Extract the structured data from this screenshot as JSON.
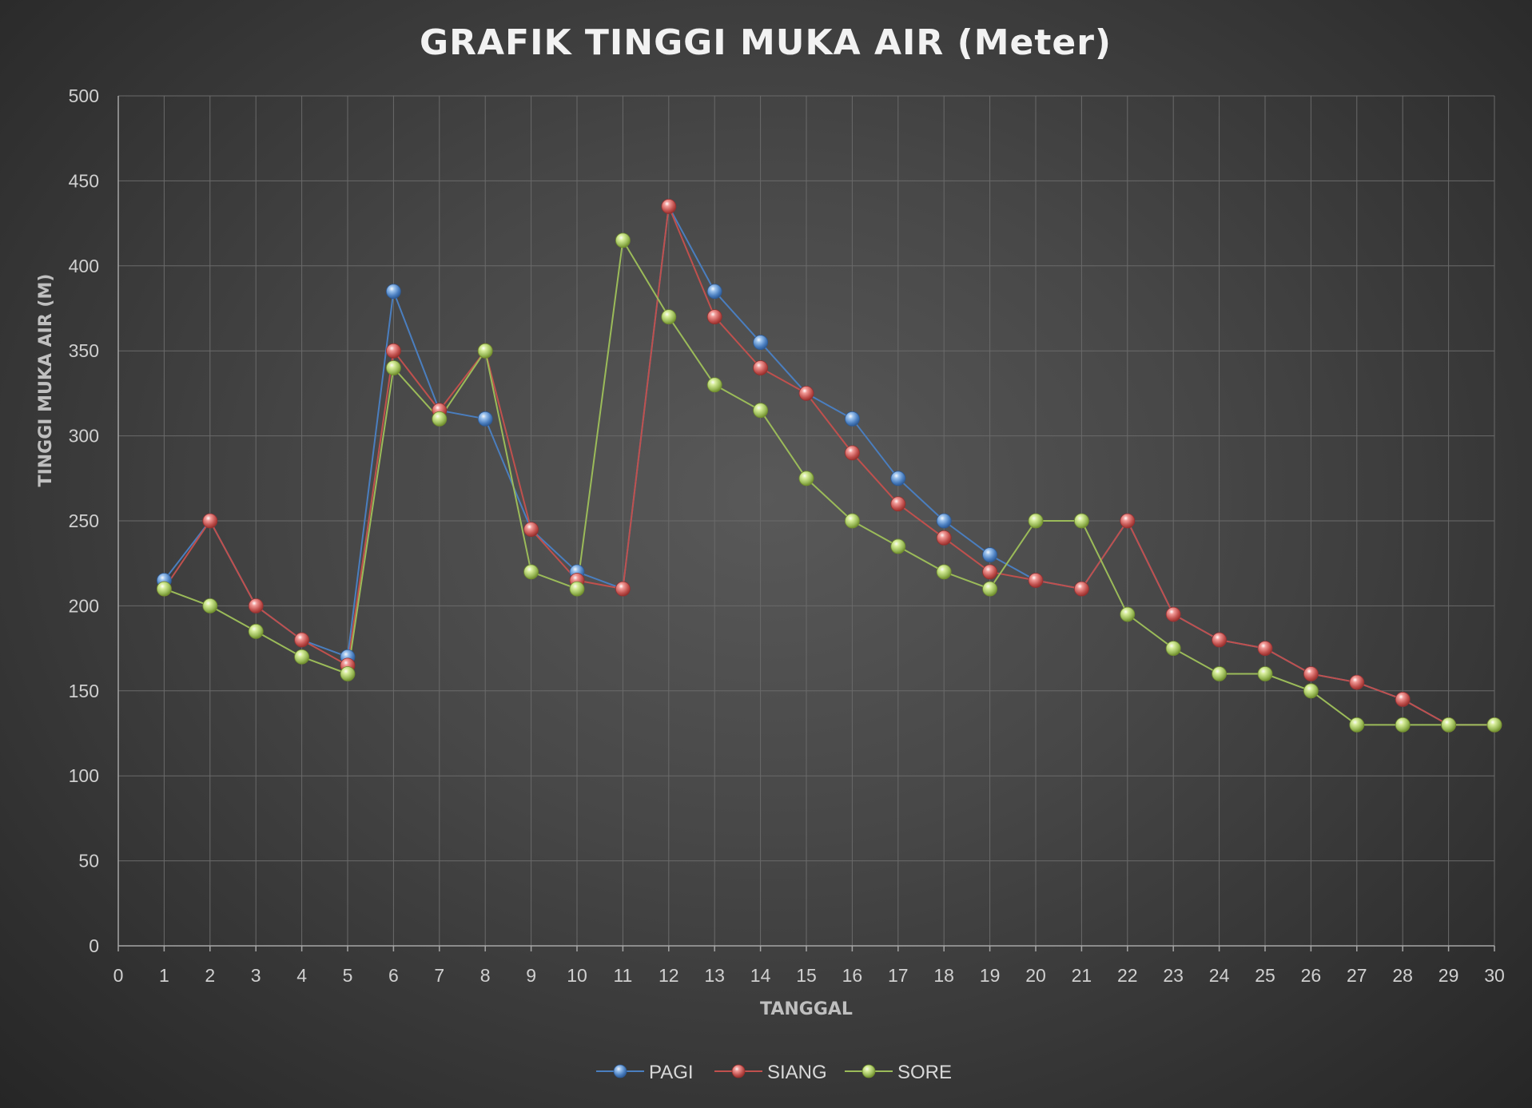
{
  "chart_data": {
    "type": "line",
    "title": "GRAFIK TINGGI MUKA AIR (Meter)",
    "xlabel": "TANGGAL",
    "ylabel": "TINGGI MUKA AIR (M)",
    "xlim": [
      0,
      30
    ],
    "ylim": [
      0,
      500
    ],
    "x_ticks": [
      0,
      1,
      2,
      3,
      4,
      5,
      6,
      7,
      8,
      9,
      10,
      11,
      12,
      13,
      14,
      15,
      16,
      17,
      18,
      19,
      20,
      21,
      22,
      23,
      24,
      25,
      26,
      27,
      28,
      29,
      30
    ],
    "y_ticks": [
      0,
      50,
      100,
      150,
      200,
      250,
      300,
      350,
      400,
      450,
      500
    ],
    "grid": true,
    "legend_position": "bottom",
    "x": [
      1,
      2,
      3,
      4,
      5,
      6,
      7,
      8,
      9,
      10,
      11,
      12,
      13,
      14,
      15,
      16,
      17,
      18,
      19,
      20,
      21,
      22,
      23,
      24,
      25,
      26,
      27,
      28,
      29,
      30
    ],
    "series": [
      {
        "name": "PAGI",
        "color": "#4a7ebf",
        "marker_light": "#9cc3ee",
        "marker_dark": "#2d5a95",
        "values": [
          215,
          250,
          200,
          180,
          170,
          385,
          315,
          310,
          245,
          220,
          210,
          435,
          385,
          355,
          325,
          310,
          275,
          250,
          230,
          215,
          210,
          250,
          195,
          180,
          175,
          160,
          155,
          145,
          130,
          130
        ]
      },
      {
        "name": "SIANG",
        "color": "#c0504d",
        "marker_light": "#f29a97",
        "marker_dark": "#962f2c",
        "values": [
          210,
          250,
          200,
          180,
          165,
          350,
          315,
          350,
          245,
          215,
          210,
          435,
          370,
          340,
          325,
          290,
          260,
          240,
          220,
          215,
          210,
          250,
          195,
          180,
          175,
          160,
          155,
          145,
          130,
          130
        ]
      },
      {
        "name": "SORE",
        "color": "#9bbb59",
        "marker_light": "#d8ee9c",
        "marker_dark": "#6f8d2c",
        "values": [
          210,
          200,
          185,
          170,
          160,
          340,
          310,
          350,
          220,
          210,
          415,
          370,
          330,
          315,
          275,
          250,
          235,
          220,
          210,
          250,
          250,
          195,
          175,
          160,
          160,
          150,
          130,
          130,
          130,
          130
        ]
      }
    ]
  }
}
